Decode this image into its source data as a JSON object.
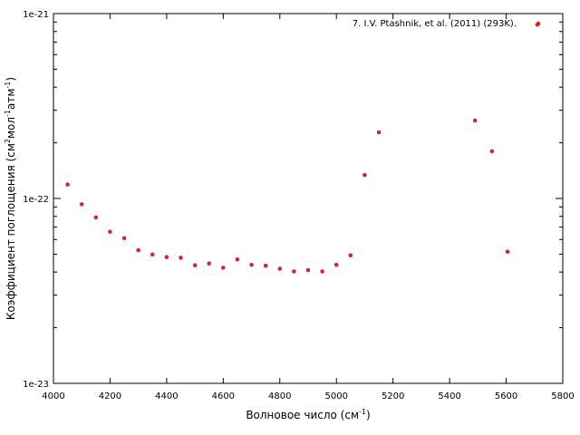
{
  "chart_data": {
    "type": "scatter",
    "x_scale": "linear",
    "y_scale": "log",
    "xlim": [
      4000,
      5800
    ],
    "ylim": [
      1e-23,
      1e-21
    ],
    "grid": false,
    "legend_position": "top-right",
    "colors": {
      "series": "#d62728",
      "frame": "#000000",
      "background": "#ffffff"
    },
    "xlabel": {
      "text": "Волновое число (см",
      "sup": "-1",
      "tail": ")"
    },
    "ylabel": {
      "parts": [
        {
          "t": "Коэффициент поглощения (см",
          "sup": false
        },
        {
          "t": "2",
          "sup": true
        },
        {
          "t": "мол",
          "sup": false
        },
        {
          "t": "-1",
          "sup": true
        },
        {
          "t": "атм",
          "sup": false
        },
        {
          "t": "-1",
          "sup": true
        },
        {
          "t": ")",
          "sup": false
        }
      ]
    },
    "xticks": [
      {
        "v": 4000,
        "label": "4000"
      },
      {
        "v": 4200,
        "label": "4200"
      },
      {
        "v": 4400,
        "label": "4400"
      },
      {
        "v": 4600,
        "label": "4600"
      },
      {
        "v": 4800,
        "label": "4800"
      },
      {
        "v": 5000,
        "label": "5000"
      },
      {
        "v": 5200,
        "label": "5200"
      },
      {
        "v": 5400,
        "label": "5400"
      },
      {
        "v": 5600,
        "label": "5600"
      },
      {
        "v": 5800,
        "label": "5800"
      }
    ],
    "yticks": [
      {
        "v": 1e-23,
        "label": "1e-23"
      },
      {
        "v": 1e-22,
        "label": "1e-22"
      },
      {
        "v": 1e-21,
        "label": "1e-21"
      }
    ],
    "series": [
      {
        "name": "7. I.V. Ptashnik, et al. (2011) (293K).",
        "x": [
          4050,
          4100,
          4150,
          4200,
          4250,
          4300,
          4350,
          4400,
          4450,
          4500,
          4550,
          4600,
          4650,
          4700,
          4750,
          4800,
          4850,
          4900,
          4950,
          5000,
          5050,
          5100,
          5150,
          5490,
          5550,
          5605,
          5710
        ],
        "y": [
          1.19e-22,
          9.3e-23,
          7.9e-23,
          6.6e-23,
          6.1e-23,
          5.25e-23,
          4.98e-23,
          4.82e-23,
          4.78e-23,
          4.35e-23,
          4.45e-23,
          4.22e-23,
          4.68e-23,
          4.37e-23,
          4.33e-23,
          4.17e-23,
          4.03e-23,
          4.1e-23,
          4.03e-23,
          4.37e-23,
          4.93e-23,
          1.34e-22,
          2.28e-22,
          2.64e-22,
          1.8e-22,
          5.15e-23,
          8.7e-22
        ]
      }
    ]
  }
}
